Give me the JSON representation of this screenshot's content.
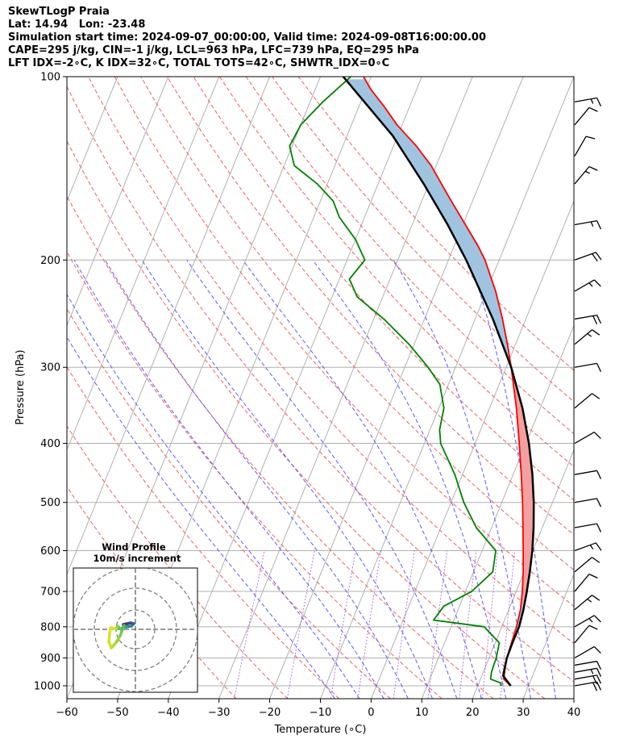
{
  "header": {
    "line1": "SkewTLogP Praia",
    "line2": "Lat: 14.94   Lon: -23.48",
    "line3": "Simulation start time: 2024-09-07_00:00:00, Valid time: 2024-09-08T16:00:00.00",
    "line4": "CAPE=295 j/kg, CIN=-1 j/kg, LCL=963 hPa, LFC=739 hPa, EQ=295 hPa",
    "line5": "LFT IDX=-2∘C, K IDX=32∘C, TOTAL TOTS=42∘C, SHWTR_IDX=0∘C"
  },
  "chart_data": {
    "type": "line",
    "subtype": "skew-t log-p",
    "xlabel": "Temperature (∘C)",
    "ylabel": "Pressure (hPa)",
    "xlim": [
      -60,
      40
    ],
    "ylim": [
      1050,
      100
    ],
    "yscale": "log",
    "x_ticks": [
      "−60",
      "−50",
      "−40",
      "−30",
      "−20",
      "−10",
      "0",
      "10",
      "20",
      "30",
      "40"
    ],
    "y_ticks": [
      "100",
      "200",
      "300",
      "400",
      "500",
      "600",
      "700",
      "800",
      "900",
      "1000"
    ],
    "grid": true,
    "series": [
      {
        "role": "temperature",
        "color": "#ff0000",
        "points": [
          [
            1000,
            26.5
          ],
          [
            975,
            24.6
          ],
          [
            950,
            24.2
          ],
          [
            925,
            23.8
          ],
          [
            900,
            23.5
          ],
          [
            850,
            23.2
          ],
          [
            800,
            22.9
          ],
          [
            750,
            22.3
          ],
          [
            700,
            21.2
          ],
          [
            650,
            19.8
          ],
          [
            600,
            18.1
          ],
          [
            550,
            16.2
          ],
          [
            500,
            14.1
          ],
          [
            450,
            11.6
          ],
          [
            400,
            8.7
          ],
          [
            350,
            5.3
          ],
          [
            300,
            1.0
          ],
          [
            275,
            -1.6
          ],
          [
            250,
            -4.6
          ],
          [
            225,
            -8.2
          ],
          [
            200,
            -12.8
          ],
          [
            190,
            -15.2
          ],
          [
            175,
            -19.5
          ],
          [
            160,
            -24.2
          ],
          [
            150,
            -27.5
          ],
          [
            140,
            -31.0
          ],
          [
            130,
            -35.5
          ],
          [
            120,
            -41.0
          ],
          [
            112,
            -45.0
          ],
          [
            105,
            -49.0
          ],
          [
            100,
            -51.5
          ]
        ]
      },
      {
        "role": "dewpoint",
        "color": "#008000",
        "points": [
          [
            1000,
            24.5
          ],
          [
            990,
            24.4
          ],
          [
            975,
            22.0
          ],
          [
            950,
            21.6
          ],
          [
            925,
            21.5
          ],
          [
            900,
            21.4
          ],
          [
            850,
            20.8
          ],
          [
            800,
            16.5
          ],
          [
            780,
            6.0
          ],
          [
            740,
            6.9
          ],
          [
            700,
            11.2
          ],
          [
            650,
            13.8
          ],
          [
            600,
            12.7
          ],
          [
            550,
            7.0
          ],
          [
            500,
            2.5
          ],
          [
            450,
            -1.5
          ],
          [
            400,
            -6.8
          ],
          [
            380,
            -8.1
          ],
          [
            350,
            -9.0
          ],
          [
            320,
            -11.7
          ],
          [
            300,
            -15.4
          ],
          [
            275,
            -21.0
          ],
          [
            250,
            -28.0
          ],
          [
            230,
            -35.0
          ],
          [
            215,
            -38.0
          ],
          [
            200,
            -36.5
          ],
          [
            185,
            -40.0
          ],
          [
            170,
            -45.0
          ],
          [
            160,
            -47.5
          ],
          [
            150,
            -52.0
          ],
          [
            140,
            -58.0
          ],
          [
            130,
            -60.5
          ],
          [
            120,
            -60.0
          ],
          [
            110,
            -57.5
          ],
          [
            100,
            -54.0
          ]
        ]
      },
      {
        "role": "parcel",
        "color": "#000000",
        "points": [
          [
            1000,
            26.5
          ],
          [
            963,
            24.2
          ],
          [
            900,
            23.5
          ],
          [
            850,
            23.4
          ],
          [
            800,
            23.4
          ],
          [
            750,
            22.9
          ],
          [
            700,
            22.1
          ],
          [
            650,
            21.1
          ],
          [
            600,
            19.9
          ],
          [
            550,
            18.3
          ],
          [
            500,
            16.3
          ],
          [
            450,
            13.8
          ],
          [
            400,
            10.6
          ],
          [
            350,
            6.5
          ],
          [
            300,
            1.0
          ],
          [
            250,
            -6.5
          ],
          [
            200,
            -16.5
          ],
          [
            175,
            -23.0
          ],
          [
            150,
            -31.0
          ],
          [
            125,
            -41.0
          ],
          [
            100,
            -55.5
          ]
        ]
      }
    ],
    "shading": [
      {
        "kind": "CAPE",
        "color": "#f4a0a0"
      },
      {
        "kind": "CIN",
        "color": "#a0c4e0"
      }
    ],
    "wind_barbs": [
      {
        "p": 1000,
        "speed_kt": 20,
        "dir": 80
      },
      {
        "p": 975,
        "speed_kt": 20,
        "dir": 80
      },
      {
        "p": 950,
        "speed_kt": 15,
        "dir": 80
      },
      {
        "p": 925,
        "speed_kt": 10,
        "dir": 80
      },
      {
        "p": 900,
        "speed_kt": 10,
        "dir": 60
      },
      {
        "p": 850,
        "speed_kt": 10,
        "dir": 40
      },
      {
        "p": 800,
        "speed_kt": 15,
        "dir": 60
      },
      {
        "p": 750,
        "speed_kt": 15,
        "dir": 50
      },
      {
        "p": 700,
        "speed_kt": 10,
        "dir": 40
      },
      {
        "p": 650,
        "speed_kt": 10,
        "dir": 50
      },
      {
        "p": 600,
        "speed_kt": 15,
        "dir": 70
      },
      {
        "p": 550,
        "speed_kt": 10,
        "dir": 80
      },
      {
        "p": 500,
        "speed_kt": 10,
        "dir": 80
      },
      {
        "p": 450,
        "speed_kt": 10,
        "dir": 80
      },
      {
        "p": 400,
        "speed_kt": 10,
        "dir": 60
      },
      {
        "p": 350,
        "speed_kt": 10,
        "dir": 50
      },
      {
        "p": 300,
        "speed_kt": 10,
        "dir": 80
      },
      {
        "p": 275,
        "speed_kt": 15,
        "dir": 50
      },
      {
        "p": 250,
        "speed_kt": 20,
        "dir": 80
      },
      {
        "p": 225,
        "speed_kt": 15,
        "dir": 60
      },
      {
        "p": 200,
        "speed_kt": 20,
        "dir": 70
      },
      {
        "p": 175,
        "speed_kt": 15,
        "dir": 80
      },
      {
        "p": 150,
        "speed_kt": 15,
        "dir": 40
      },
      {
        "p": 135,
        "speed_kt": 10,
        "dir": 30
      },
      {
        "p": 120,
        "speed_kt": 10,
        "dir": 40
      },
      {
        "p": 110,
        "speed_kt": 15,
        "dir": 80
      }
    ]
  },
  "hodograph": {
    "title": "Wind Profile",
    "subtitle": "10m/s increment"
  }
}
